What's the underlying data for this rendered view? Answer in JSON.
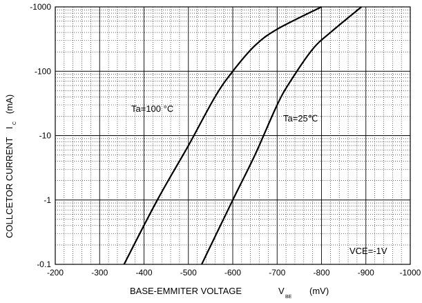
{
  "chart_data": {
    "type": "line",
    "xlabel": "BASE-EMMITER VOLTAGE",
    "xlabel_symbol": "V",
    "xlabel_subscript": "BE",
    "xlabel_unit": "(mV)",
    "ylabel": "COLLCETOR CURRENT",
    "ylabel_symbol": "I",
    "ylabel_subscript": "C",
    "ylabel_unit": "(mA)",
    "x_ticks": [
      -200,
      -300,
      -400,
      -500,
      -600,
      -700,
      -800,
      -900,
      -1000
    ],
    "x_tick_labels": [
      "-200",
      "-300",
      "-400",
      "-500",
      "-600",
      "-700",
      "-800",
      "-900",
      "-1000"
    ],
    "y_ticks": [
      -0.1,
      -1,
      -10,
      -100,
      -1000
    ],
    "y_tick_labels": [
      "-0.1",
      "-1",
      "-10",
      "-100",
      "-1000"
    ],
    "xlim": [
      -200,
      -1000
    ],
    "ylim": [
      -0.1,
      -1000
    ],
    "yscale": "log",
    "grid": "major solid, minor dotted",
    "annotation": "VCE=-1V",
    "series": [
      {
        "name": "Ta=100 °C",
        "x": [
          -355,
          -430,
          -500,
          -560,
          -600,
          -650,
          -700,
          -800
        ],
        "y": [
          -0.1,
          -1,
          -7,
          -40,
          -100,
          -250,
          -450,
          -1000
        ]
      },
      {
        "name": "Ta=25℃",
        "x": [
          -530,
          -600,
          -650,
          -700,
          -730,
          -780,
          -820,
          -890
        ],
        "y": [
          -0.1,
          -1,
          -5,
          -30,
          -70,
          -220,
          -400,
          -1000
        ]
      }
    ]
  }
}
